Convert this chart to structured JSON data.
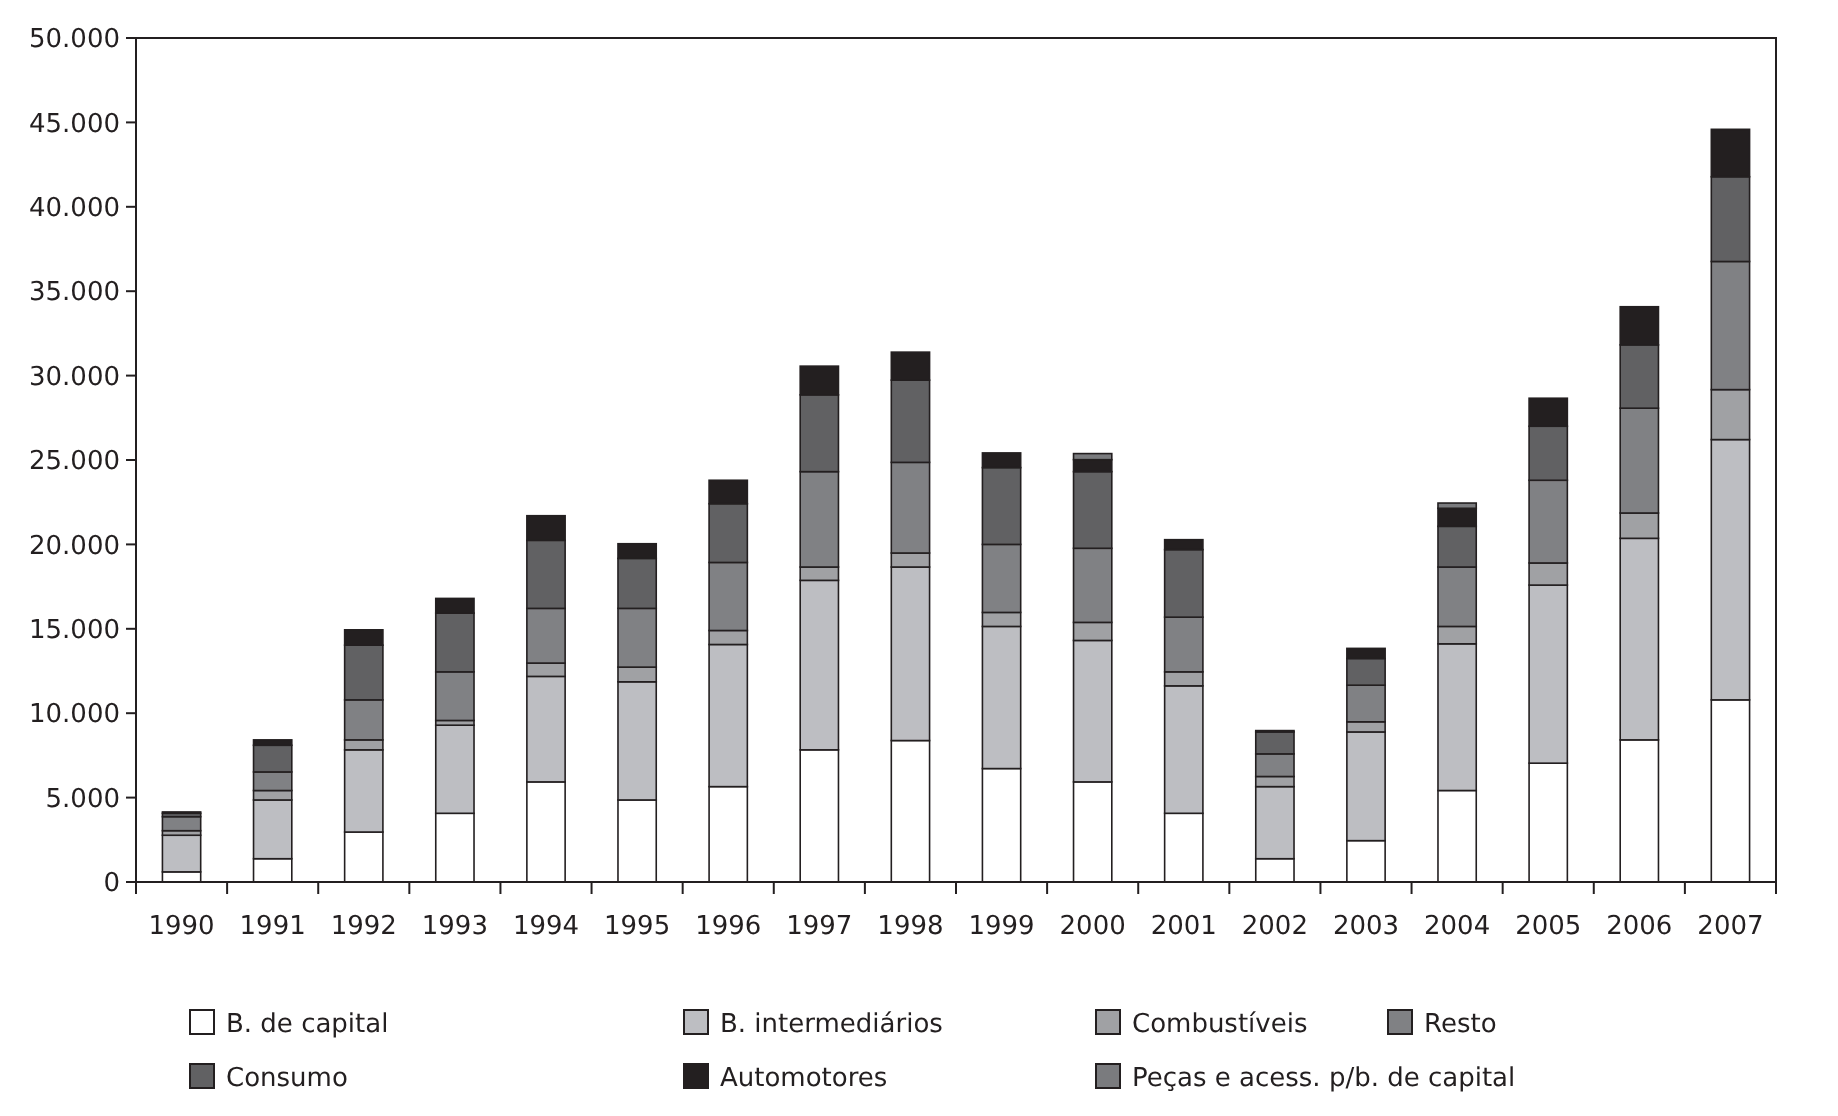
{
  "chart_data": {
    "type": "bar",
    "stacked": true,
    "categories": [
      "1990",
      "1991",
      "1992",
      "1993",
      "1994",
      "1995",
      "1996",
      "1997",
      "1998",
      "1999",
      "2000",
      "2001",
      "2002",
      "2003",
      "2004",
      "2005",
      "2006",
      "2007"
    ],
    "series": [
      {
        "name": "B. de capital",
        "color": "#ffffff",
        "values": [
          600,
          1380,
          2960,
          4070,
          5930,
          4860,
          5650,
          7830,
          8380,
          6720,
          5930,
          4070,
          1380,
          2450,
          5420,
          7040,
          8420,
          10790
        ]
      },
      {
        "name": "B. intermediários",
        "color": "#bdbec2",
        "values": [
          2170,
          3480,
          4870,
          5220,
          6250,
          7000,
          8420,
          10040,
          10280,
          8420,
          8380,
          7550,
          4270,
          6440,
          8690,
          10550,
          11940,
          15420
        ]
      },
      {
        "name": "Combustíveis",
        "color": "#a0a1a4",
        "values": [
          270,
          560,
          590,
          280,
          790,
          870,
          830,
          790,
          830,
          830,
          1070,
          830,
          600,
          600,
          1030,
          1310,
          1500,
          2960
        ]
      },
      {
        "name": "Resto",
        "color": "#808184",
        "values": [
          830,
          1100,
          2370,
          2880,
          3240,
          3480,
          4030,
          5650,
          5370,
          4030,
          4390,
          3240,
          1340,
          2170,
          3520,
          4900,
          6210,
          7590
        ]
      },
      {
        "name": "Consumo",
        "color": "#616163",
        "values": [
          200,
          1580,
          3240,
          3480,
          4030,
          2960,
          3480,
          4550,
          4870,
          4550,
          4540,
          4000,
          1300,
          1580,
          2410,
          3200,
          3750,
          5020
        ]
      },
      {
        "name": "Automotores",
        "color": "#231f20",
        "values": [
          80,
          320,
          910,
          870,
          1460,
          870,
          1390,
          1700,
          1660,
          870,
          710,
          590,
          80,
          600,
          1070,
          1660,
          2260,
          2810
        ]
      },
      {
        "name": "Peças e acess. p/b. de capital",
        "color": "#7a7b7e",
        "values": [
          0,
          0,
          0,
          0,
          0,
          0,
          0,
          0,
          0,
          0,
          360,
          0,
          0,
          0,
          310,
          0,
          0,
          0
        ]
      }
    ],
    "ylim": [
      0,
      50000
    ],
    "yticks": [
      0,
      {
        "value": 5000,
        "label": "5.000"
      },
      {
        "value": 10000,
        "label": "10.000"
      },
      {
        "value": 15000,
        "label": "15.000"
      },
      {
        "value": 20000,
        "label": "20.000"
      },
      {
        "value": 25000,
        "label": "25.000"
      },
      {
        "value": 30000,
        "label": "30.000"
      },
      {
        "value": 35000,
        "label": "35.000"
      },
      {
        "value": 40000,
        "label": "40.000"
      },
      {
        "value": 45000,
        "label": "45.000"
      },
      {
        "value": 50000,
        "label": "50.000"
      }
    ],
    "grid": false,
    "legend": "bottom"
  }
}
